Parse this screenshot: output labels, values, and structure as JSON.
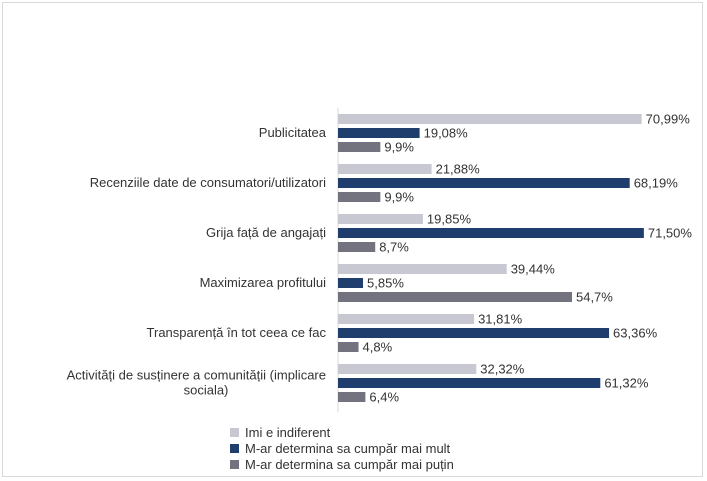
{
  "chart_data": {
    "type": "bar",
    "orientation": "horizontal",
    "title": "",
    "xlabel": "",
    "ylabel": "",
    "xlim": [
      0,
      72
    ],
    "grid": false,
    "legend_position": "bottom",
    "categories": [
      [
        "Publicitatea"
      ],
      [
        "Recenziile date de consumatori/utilizatori"
      ],
      [
        "Grija față de angajați"
      ],
      [
        "Maximizarea profitului"
      ],
      [
        "Transparență în tot ceea ce fac"
      ],
      [
        "Activități de susținere a comunității (implicare",
        "sociala)"
      ]
    ],
    "series": [
      {
        "name": "Imi e indiferent",
        "color": "#c8c8d2",
        "values": [
          70.99,
          21.88,
          19.85,
          39.44,
          31.81,
          32.32
        ],
        "labels": [
          "70,99%",
          "21,88%",
          "19,85%",
          "39,44%",
          "31,81%",
          "32,32%"
        ]
      },
      {
        "name": "M-ar determina sa cumpăr mai mult",
        "color": "#1f3e6e",
        "values": [
          19.08,
          68.19,
          71.5,
          5.85,
          63.36,
          61.32
        ],
        "labels": [
          "19,08%",
          "68,19%",
          "71,50%",
          "5,85%",
          "63,36%",
          "61,32%"
        ]
      },
      {
        "name": "M-ar determina sa cumpăr mai puțin",
        "color": "#737380",
        "values": [
          9.9,
          9.9,
          8.7,
          54.7,
          4.8,
          6.4
        ],
        "labels": [
          "9,9%",
          "9,9%",
          "8,7%",
          "54,7%",
          "4,8%",
          "6,4%"
        ]
      }
    ]
  }
}
